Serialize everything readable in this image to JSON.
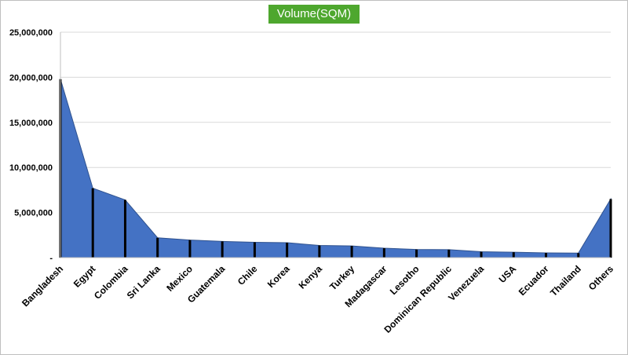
{
  "chart_data": {
    "type": "area",
    "title": "Volume(SQM)",
    "xlabel": "",
    "ylabel": "",
    "ylim": [
      0,
      25000000
    ],
    "yticks": [
      0,
      5000000,
      10000000,
      15000000,
      20000000,
      25000000
    ],
    "ytick_labels": [
      "-",
      "5,000,000",
      "10,000,000",
      "15,000,000",
      "20,000,000",
      "25,000,000"
    ],
    "grid": true,
    "legend": "none",
    "categories": [
      "Bangladesh",
      "Egypt",
      "Colombia",
      "Sri Lanka",
      "Mexico",
      "Guatemala",
      "Chile",
      "Korea",
      "Kenya",
      "Turkey",
      "Madagascar",
      "Lesotho",
      "Dominican Republic",
      "Venezuela",
      "USA",
      "Ecuador",
      "Thailand",
      "Others"
    ],
    "values": [
      19800000,
      7700000,
      6400000,
      2200000,
      1950000,
      1800000,
      1700000,
      1650000,
      1350000,
      1300000,
      1050000,
      900000,
      880000,
      650000,
      600000,
      520000,
      500000,
      6500000
    ],
    "colors": {
      "fill": "#4472c4",
      "outline": "#2f528f",
      "droplines": "#000000",
      "title_bg": "#4ea72e"
    }
  }
}
